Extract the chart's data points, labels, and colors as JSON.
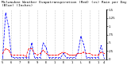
{
  "title": "Milwaukee Weather Evapotranspiration (Red) (vs) Rain per Day (Blue) (Inches)",
  "blue_data": [
    0.05,
    1.4,
    1.0,
    0.08,
    0.05,
    0.05,
    0.05,
    0.05,
    0.05,
    0.05,
    0.5,
    0.05,
    0.05,
    0.05,
    0.5,
    0.35,
    0.05,
    0.05,
    0.05,
    0.05,
    0.05,
    0.18,
    0.05,
    0.05,
    0.05,
    0.05,
    0.18,
    0.7,
    0.45,
    0.05,
    0.05,
    0.05,
    0.05,
    0.05,
    0.42,
    0.05
  ],
  "red_data": [
    0.18,
    0.32,
    0.28,
    0.13,
    0.13,
    0.13,
    0.13,
    0.13,
    0.09,
    0.32,
    0.32,
    0.18,
    0.13,
    0.18,
    0.28,
    0.18,
    0.13,
    0.13,
    0.13,
    0.13,
    0.18,
    0.22,
    0.18,
    0.13,
    0.13,
    0.13,
    0.18,
    0.18,
    0.22,
    0.18,
    0.18,
    0.13,
    0.13,
    0.13,
    0.22,
    0.18
  ],
  "ylim": [
    0,
    1.5
  ],
  "yticks": [
    0.0,
    0.25,
    0.5,
    0.75,
    1.0,
    1.25,
    1.5
  ],
  "ytick_labels": [
    "0",
    ".25",
    ".5",
    ".75",
    "1",
    "1.25",
    "1.5"
  ],
  "xtick_pos": [
    0,
    3,
    6,
    9,
    12,
    15,
    18,
    21,
    24,
    27,
    30,
    33,
    35
  ],
  "xtick_labels": [
    "5",
    "6",
    "7",
    "8",
    "9",
    "E",
    "1",
    "E",
    "1",
    "L",
    "E",
    "1",
    "4"
  ],
  "grid_positions": [
    0,
    3,
    6,
    9,
    12,
    15,
    18,
    21,
    24,
    27,
    30,
    33
  ],
  "background_color": "#ffffff",
  "blue_color": "#0000ff",
  "red_color": "#ff0000",
  "grid_color": "#999999",
  "title_fontsize": 3.2,
  "tick_fontsize": 2.8,
  "line_width": 0.55,
  "marker_size": 0.8
}
